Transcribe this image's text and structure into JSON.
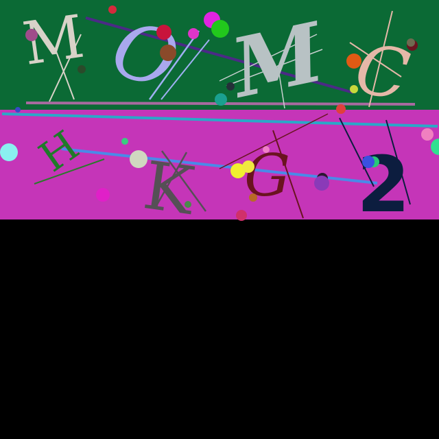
{
  "panels": {
    "top_color": "#0b6a35",
    "middle_color": "#c535b8",
    "bottom_color": "#000000"
  },
  "glyphs": {
    "m1": {
      "text": "M",
      "color": "#d8d2c8"
    },
    "o": {
      "text": "O",
      "color": "#a9a8ee"
    },
    "m2": {
      "text": "M",
      "color": "#b8c2c4"
    },
    "c": {
      "text": "C",
      "color": "#e5b8a8"
    },
    "h": {
      "text": "H",
      "color": "#1f7a2a"
    },
    "k": {
      "text": "K",
      "color": "#555055"
    },
    "g": {
      "text": "G",
      "color": "#6a1320"
    },
    "two": {
      "text": "2",
      "color": "#0c1d3f"
    }
  }
}
